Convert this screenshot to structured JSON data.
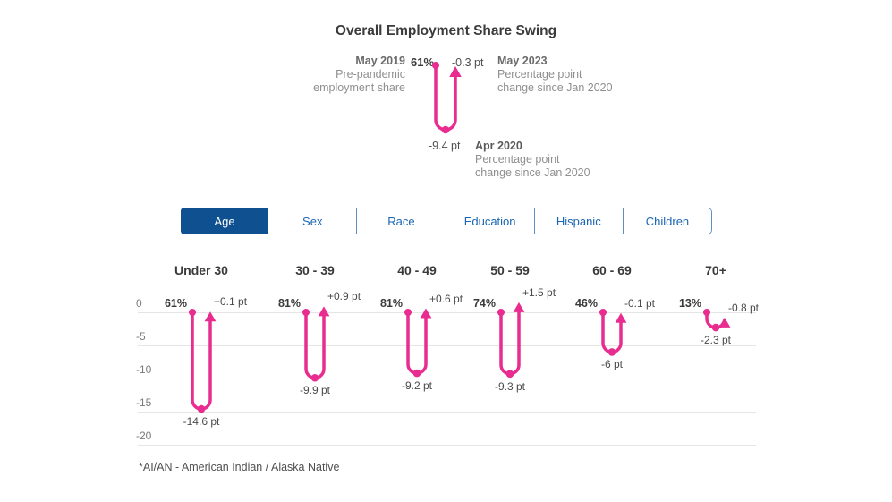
{
  "title": "Overall Employment Share Swing",
  "legend": {
    "start_label": "May 2019",
    "start_desc_line1": "Pre-pandemic",
    "start_desc_line2": "employment share",
    "start_value": "61%",
    "end_value": "-0.3 pt",
    "end_label": "May 2023",
    "end_desc_line1": "Percentage point",
    "end_desc_line2": "change since Jan 2020",
    "min_value": "-9.4 pt",
    "min_label": "Apr 2020",
    "min_desc_line1": "Percentage point",
    "min_desc_line2": "change since Jan 2020"
  },
  "tabs": [
    {
      "label": "Age",
      "active": true
    },
    {
      "label": "Sex",
      "active": false
    },
    {
      "label": "Race",
      "active": false
    },
    {
      "label": "Education",
      "active": false
    },
    {
      "label": "Hispanic",
      "active": false
    },
    {
      "label": "Children",
      "active": false
    }
  ],
  "footnote": "*AI/AN - American Indian / Alaska Native",
  "colors": {
    "accent_pink": "#e92c90",
    "tab_active_bg": "#0f5190",
    "tab_text": "#1a66b2",
    "gridline": "#e5e5e5"
  },
  "chart_data": {
    "type": "swing",
    "title": "Overall Employment Share Swing",
    "ylabel": "Percentage point change since Jan 2020",
    "yticks": [
      0,
      -5,
      -10,
      -15,
      -20
    ],
    "ylim": [
      -20,
      0
    ],
    "unit": "pt",
    "categories": [
      "Under 30",
      "30 - 39",
      "40 - 49",
      "50 - 59",
      "60 - 69",
      "70+"
    ],
    "groups": [
      {
        "label": "Under 30",
        "share": "61%",
        "min_pt": -14.6,
        "end_pt": 0.1,
        "min_label": "-14.6 pt",
        "end_label": "+0.1 pt"
      },
      {
        "label": "30 - 39",
        "share": "81%",
        "min_pt": -9.9,
        "end_pt": 0.9,
        "min_label": "-9.9 pt",
        "end_label": "+0.9 pt"
      },
      {
        "label": "40 - 49",
        "share": "81%",
        "min_pt": -9.2,
        "end_pt": 0.6,
        "min_label": "-9.2 pt",
        "end_label": "+0.6 pt"
      },
      {
        "label": "50 - 59",
        "share": "74%",
        "min_pt": -9.3,
        "end_pt": 1.5,
        "min_label": "-9.3 pt",
        "end_label": "+1.5 pt"
      },
      {
        "label": "60 - 69",
        "share": "46%",
        "min_pt": -6.0,
        "end_pt": -0.1,
        "min_label": "-6 pt",
        "end_label": "-0.1 pt"
      },
      {
        "label": "70+",
        "share": "13%",
        "min_pt": -2.3,
        "end_pt": -0.8,
        "min_label": "-2.3 pt",
        "end_label": "-0.8 pt"
      }
    ]
  }
}
